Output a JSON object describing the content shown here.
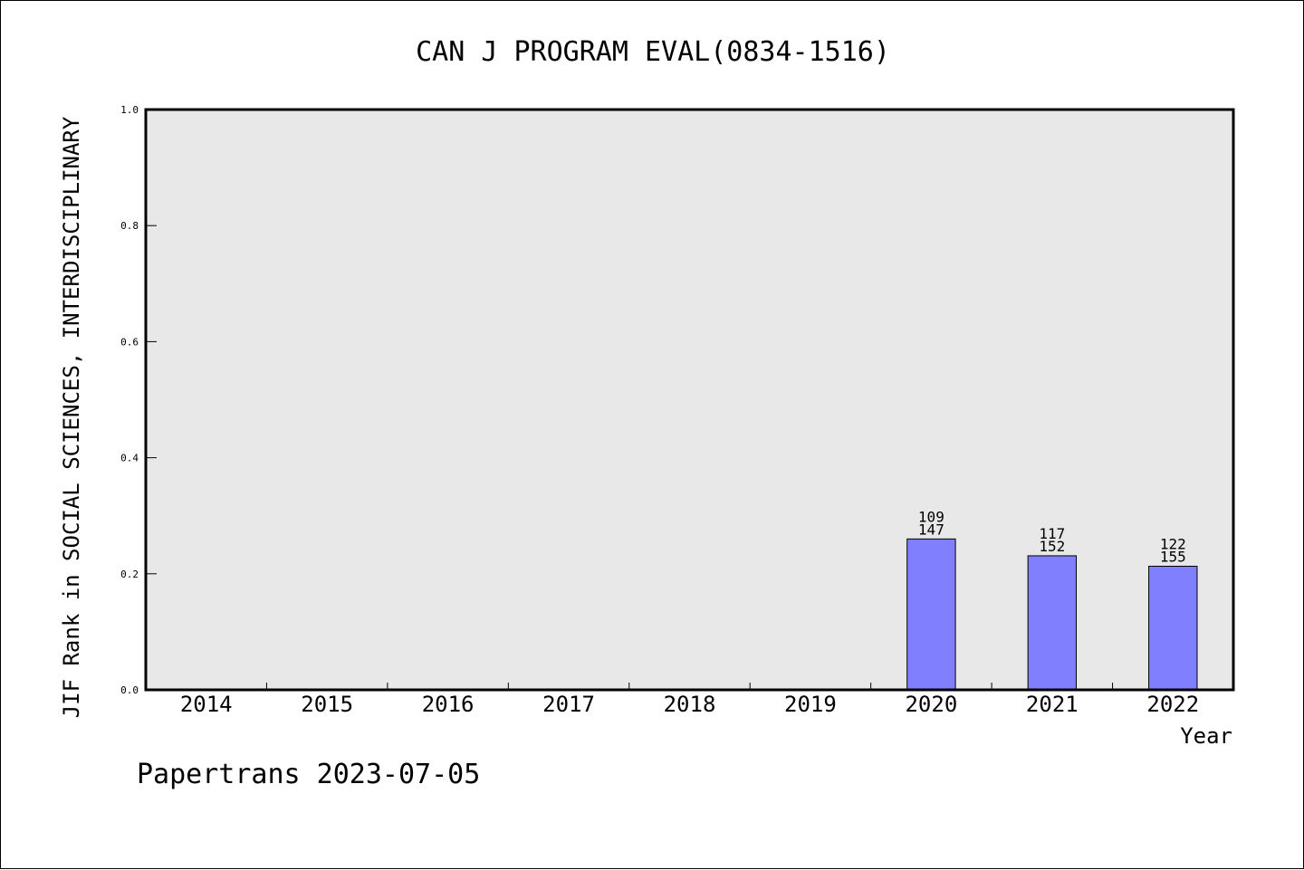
{
  "chart_data": {
    "type": "bar",
    "title": "CAN J PROGRAM EVAL(0834-1516)",
    "xlabel": "Year",
    "ylabel": "JIF Rank in SOCIAL SCIENCES, INTERDISCIPLINARY",
    "categories": [
      "2014",
      "2015",
      "2016",
      "2017",
      "2018",
      "2019",
      "2020",
      "2021",
      "2022"
    ],
    "values": [
      null,
      null,
      null,
      null,
      null,
      null,
      0.26,
      0.231,
      0.213
    ],
    "bar_labels": [
      null,
      null,
      null,
      null,
      null,
      null,
      {
        "rank": "109",
        "total": "147"
      },
      {
        "rank": "117",
        "total": "152"
      },
      {
        "rank": "122",
        "total": "155"
      }
    ],
    "ylim": [
      0,
      1.0
    ],
    "yticks": [
      "0.0",
      "0.2",
      "0.4",
      "0.6",
      "0.8",
      "1.0"
    ],
    "grid": false,
    "colors": {
      "bar": "#8080ff",
      "plot_background": "#e8e8e8",
      "axis": "#000000"
    }
  },
  "footer": {
    "text": "Papertrans 2023-07-05"
  }
}
